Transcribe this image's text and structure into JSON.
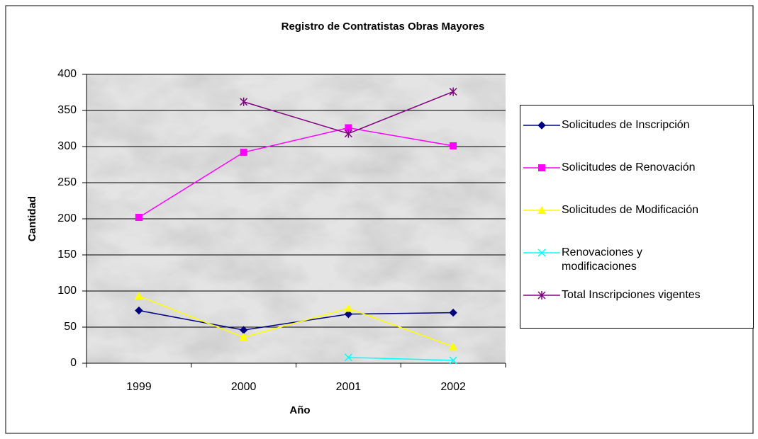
{
  "chart_data": {
    "type": "line",
    "title": "Registro de Contratistas Obras Mayores",
    "x_label": "Año",
    "y_label": "Cantidad",
    "categories": [
      "1999",
      "2000",
      "2001",
      "2002"
    ],
    "series": [
      {
        "name": "Solicitudes de Inscripción",
        "color": "#000080",
        "marker": "diamond",
        "values": [
          73,
          46,
          68,
          70
        ]
      },
      {
        "name": "Solicitudes de Renovación",
        "color": "#ff00ff",
        "marker": "square",
        "values": [
          202,
          292,
          326,
          301
        ]
      },
      {
        "name": "Solicitudes de Modificación",
        "color": "#ffff00",
        "marker": "triangle",
        "values": [
          93,
          36,
          76,
          23
        ]
      },
      {
        "name": "Renovaciones y modificaciones",
        "color": "#00ffff",
        "marker": "x",
        "values": [
          null,
          null,
          8,
          4
        ]
      },
      {
        "name": "Total Inscripciones vigentes",
        "color": "#800080",
        "marker": "star",
        "values": [
          null,
          362,
          318,
          376
        ]
      }
    ],
    "ylim": [
      0,
      400
    ],
    "yticks": [
      0,
      50,
      100,
      150,
      200,
      250,
      300,
      350,
      400
    ],
    "grid": true,
    "legend": "right"
  }
}
